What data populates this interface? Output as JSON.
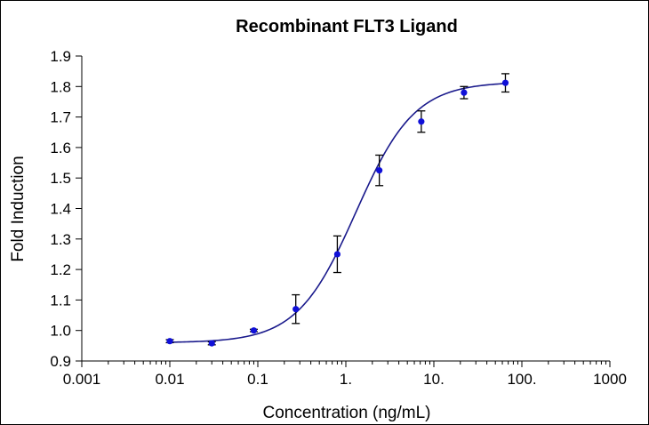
{
  "chart_data": {
    "type": "scatter",
    "title": "Recombinant FLT3 Ligand",
    "xlabel": "Concentration (ng/mL)",
    "ylabel": "Fold Induction",
    "xscale": "log",
    "xlim": [
      0.001,
      1000
    ],
    "ylim": [
      0.9,
      1.9
    ],
    "x_tick_values": [
      0.001,
      0.01,
      0.1,
      1,
      10,
      100,
      1000
    ],
    "x_tick_labels": [
      "0.001",
      "0.01",
      "0.1",
      "1.",
      "10.",
      "100.",
      "1000"
    ],
    "y_tick_values": [
      0.9,
      1.0,
      1.1,
      1.2,
      1.3,
      1.4,
      1.5,
      1.6,
      1.7,
      1.8,
      1.9
    ],
    "y_tick_labels": [
      "0.9",
      "1.0",
      "1.1",
      "1.2",
      "1.3",
      "1.4",
      "1.5",
      "1.6",
      "1.7",
      "1.8",
      "1.9"
    ],
    "grid": false,
    "series": [
      {
        "points": [
          {
            "x": 0.01,
            "y": 0.965,
            "err": 0.005
          },
          {
            "x": 0.03,
            "y": 0.958,
            "err": 0.005
          },
          {
            "x": 0.09,
            "y": 1.0,
            "err": 0.004
          },
          {
            "x": 0.27,
            "y": 1.07,
            "err": 0.047
          },
          {
            "x": 0.8,
            "y": 1.25,
            "err": 0.06
          },
          {
            "x": 2.4,
            "y": 1.525,
            "err": 0.05
          },
          {
            "x": 7.2,
            "y": 1.685,
            "err": 0.035
          },
          {
            "x": 22,
            "y": 1.78,
            "err": 0.02
          },
          {
            "x": 65,
            "y": 1.812,
            "err": 0.03
          }
        ],
        "fit": {
          "model": "4PL",
          "bottom": 0.96,
          "top": 1.815,
          "ec50": 1.3,
          "hill": 1.3
        }
      }
    ],
    "colors": {
      "marker": "#1010d8",
      "curve": "#1a1a8c",
      "error_bar": "#000000",
      "axes": "#000000"
    }
  }
}
